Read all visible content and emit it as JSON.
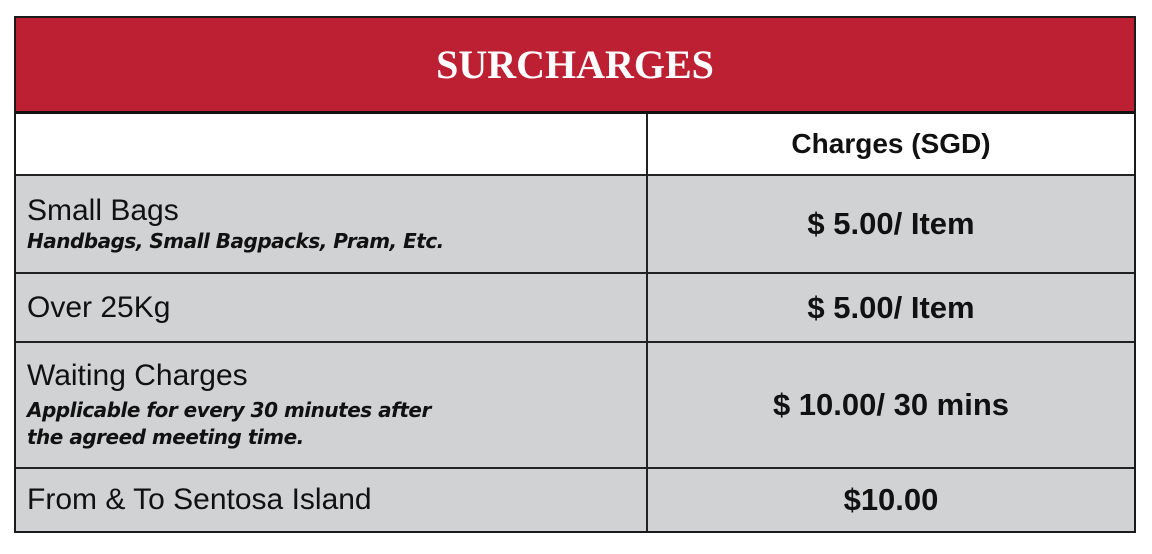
{
  "title": "SURCHARGES",
  "header": {
    "col1": "",
    "col2": "Charges (SGD)"
  },
  "colors": {
    "header_bg": "#BE2033",
    "row_bg": "#D1D2D4"
  },
  "rows": [
    {
      "item": "Small Bags",
      "note": "Handbags, Small Bagpacks, Pram, Etc.",
      "charge": "$ 5.00/ Item"
    },
    {
      "item": "Over 25Kg",
      "note": "",
      "charge": "$ 5.00/ Item"
    },
    {
      "item": "Waiting Charges",
      "note_lines": [
        "Applicable for every 30 minutes after",
        "the agreed meeting time."
      ],
      "charge": "$ 10.00/ 30 mins"
    },
    {
      "item": "From & To Sentosa Island",
      "note": "",
      "charge": "$10.00"
    }
  ]
}
